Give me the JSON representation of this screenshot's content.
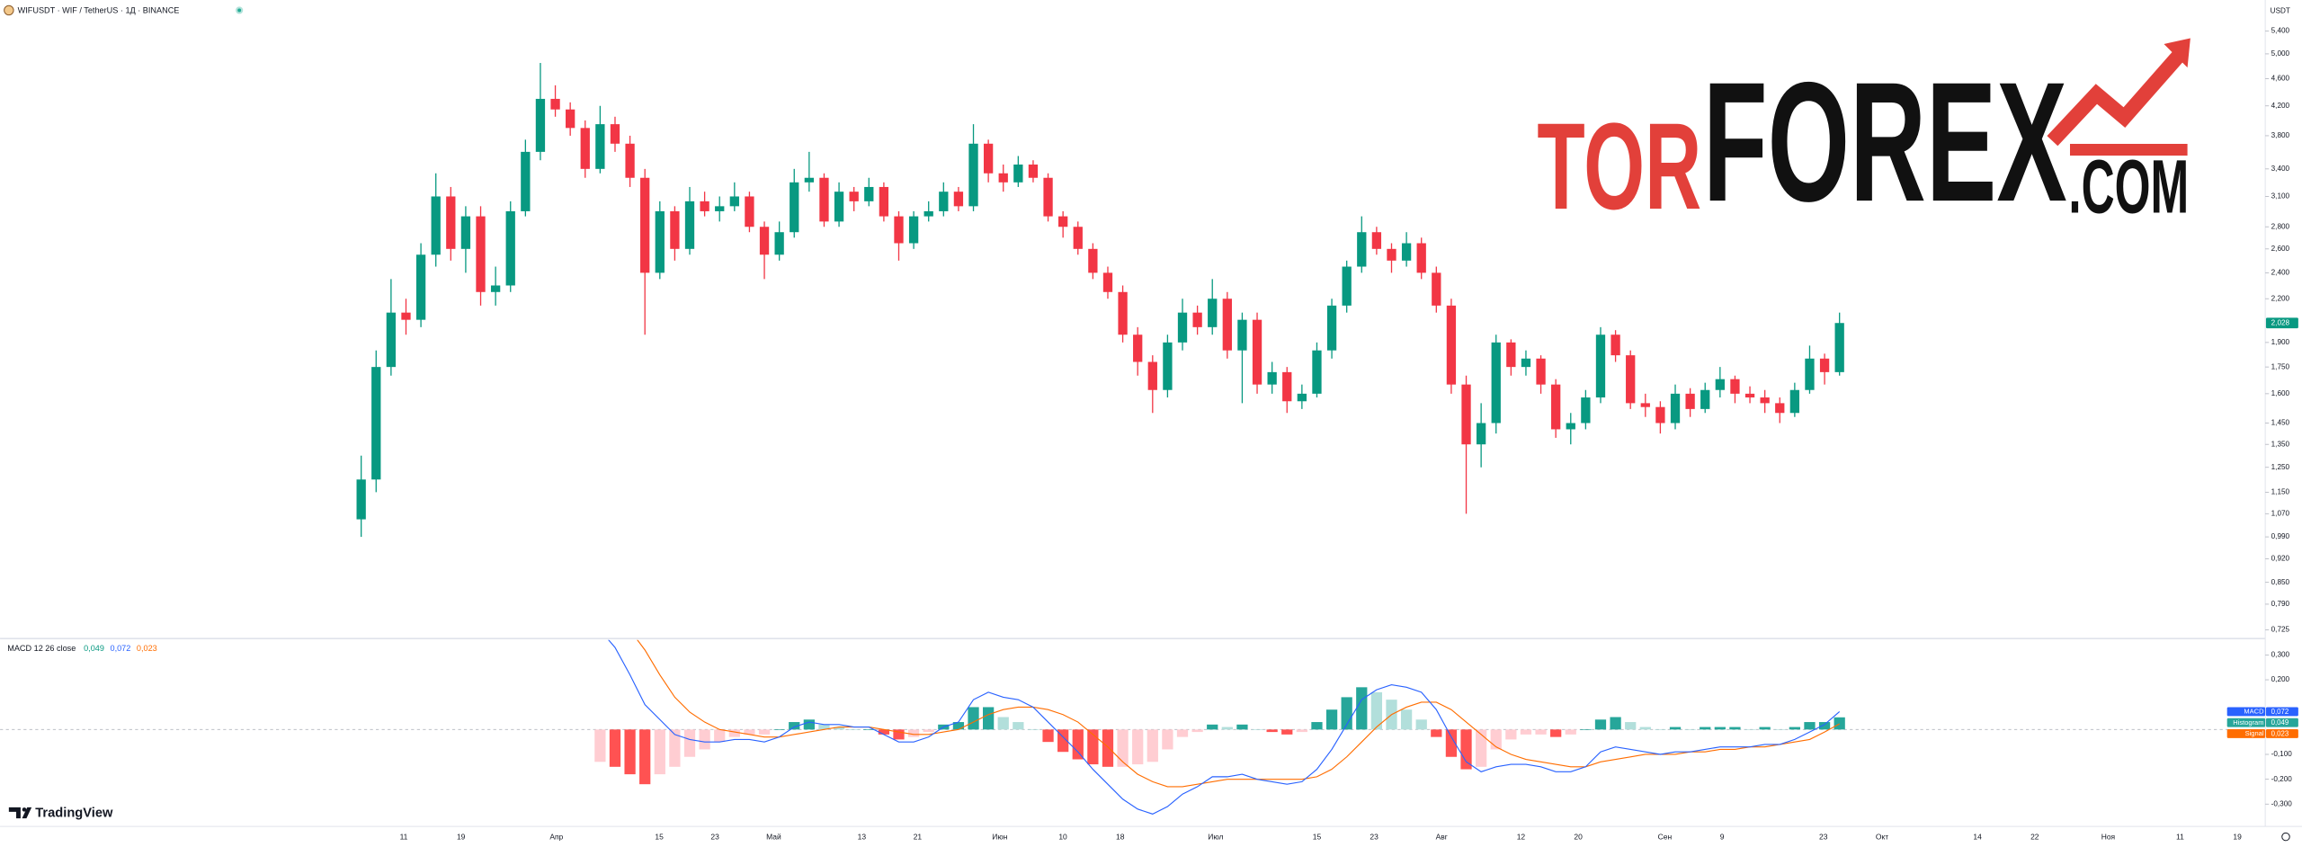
{
  "chart_data": {
    "type": "candlestick",
    "title": "WIFUSDT · WIF / TetherUS · 1Д · BINANCE",
    "currency": "USDT",
    "logo": {
      "part1": "TOR",
      "part2": "FOREX",
      "part3": ".COM"
    },
    "watermark": "TradingView",
    "log_scale": true,
    "up_color": "#089981",
    "down_color": "#f23645",
    "last_price_label": "2,028",
    "ylim": [
      0.704,
      5.99
    ],
    "yticks": [
      {
        "value": 5.4,
        "label": "5,400"
      },
      {
        "value": 5.0,
        "label": "5,000"
      },
      {
        "value": 4.6,
        "label": "4,600"
      },
      {
        "value": 4.2,
        "label": "4,200"
      },
      {
        "value": 3.8,
        "label": "3,800"
      },
      {
        "value": 3.4,
        "label": "3,400"
      },
      {
        "value": 3.1,
        "label": "3,100"
      },
      {
        "value": 2.8,
        "label": "2,800"
      },
      {
        "value": 2.6,
        "label": "2,600"
      },
      {
        "value": 2.4,
        "label": "2,400"
      },
      {
        "value": 2.2,
        "label": "2,200"
      },
      {
        "value": 1.9,
        "label": "1,900"
      },
      {
        "value": 1.75,
        "label": "1,750"
      },
      {
        "value": 1.6,
        "label": "1,600"
      },
      {
        "value": 1.45,
        "label": "1,450"
      },
      {
        "value": 1.35,
        "label": "1,350"
      },
      {
        "value": 1.25,
        "label": "1,250"
      },
      {
        "value": 1.15,
        "label": "1,150"
      },
      {
        "value": 1.07,
        "label": "1,070"
      },
      {
        "value": 0.99,
        "label": "0,990"
      },
      {
        "value": 0.92,
        "label": "0,920"
      },
      {
        "value": 0.85,
        "label": "0,850"
      },
      {
        "value": 0.79,
        "label": "0,790"
      },
      {
        "value": 0.725,
        "label": "0,725"
      }
    ],
    "xticks": [
      "11",
      "19",
      "Апр",
      "15",
      "23",
      "Май",
      "13",
      "21",
      "Июн",
      "10",
      "18",
      "Июл",
      "15",
      "23",
      "Авг",
      "12",
      "20",
      "Сен",
      "9",
      "23",
      "Окт",
      "14",
      "22",
      "Ноя",
      "11",
      "19"
    ],
    "candles": [
      [
        1.05,
        1.3,
        0.99,
        1.2
      ],
      [
        1.2,
        1.85,
        1.15,
        1.75
      ],
      [
        1.75,
        2.35,
        1.7,
        2.1
      ],
      [
        2.1,
        2.2,
        1.95,
        2.05
      ],
      [
        2.05,
        2.65,
        2.0,
        2.55
      ],
      [
        2.55,
        3.35,
        2.45,
        3.1
      ],
      [
        3.1,
        3.2,
        2.5,
        2.6
      ],
      [
        2.6,
        3.0,
        2.4,
        2.9
      ],
      [
        2.9,
        3.0,
        2.15,
        2.25
      ],
      [
        2.25,
        2.45,
        2.15,
        2.3
      ],
      [
        2.3,
        3.05,
        2.25,
        2.95
      ],
      [
        2.95,
        3.75,
        2.9,
        3.6
      ],
      [
        3.6,
        4.85,
        3.5,
        4.3
      ],
      [
        4.3,
        4.5,
        4.05,
        4.15
      ],
      [
        4.15,
        4.25,
        3.8,
        3.9
      ],
      [
        3.9,
        4.0,
        3.3,
        3.4
      ],
      [
        3.4,
        4.2,
        3.35,
        3.95
      ],
      [
        3.95,
        4.05,
        3.6,
        3.7
      ],
      [
        3.7,
        3.8,
        3.2,
        3.3
      ],
      [
        3.3,
        3.4,
        1.95,
        2.4
      ],
      [
        2.4,
        3.05,
        2.35,
        2.95
      ],
      [
        2.95,
        3.0,
        2.5,
        2.6
      ],
      [
        2.6,
        3.2,
        2.55,
        3.05
      ],
      [
        3.05,
        3.15,
        2.9,
        2.95
      ],
      [
        2.95,
        3.1,
        2.85,
        3.0
      ],
      [
        3.0,
        3.25,
        2.95,
        3.1
      ],
      [
        3.1,
        3.15,
        2.75,
        2.8
      ],
      [
        2.8,
        2.85,
        2.35,
        2.55
      ],
      [
        2.55,
        2.85,
        2.5,
        2.75
      ],
      [
        2.75,
        3.4,
        2.7,
        3.25
      ],
      [
        3.25,
        3.6,
        3.15,
        3.3
      ],
      [
        3.3,
        3.35,
        2.8,
        2.85
      ],
      [
        2.85,
        3.25,
        2.8,
        3.15
      ],
      [
        3.15,
        3.2,
        2.95,
        3.05
      ],
      [
        3.05,
        3.3,
        3.0,
        3.2
      ],
      [
        3.2,
        3.25,
        2.85,
        2.9
      ],
      [
        2.9,
        2.95,
        2.5,
        2.65
      ],
      [
        2.65,
        2.95,
        2.6,
        2.9
      ],
      [
        2.9,
        3.05,
        2.85,
        2.95
      ],
      [
        2.95,
        3.25,
        2.9,
        3.15
      ],
      [
        3.15,
        3.2,
        2.95,
        3.0
      ],
      [
        3.0,
        3.95,
        2.95,
        3.7
      ],
      [
        3.7,
        3.75,
        3.25,
        3.35
      ],
      [
        3.35,
        3.45,
        3.15,
        3.25
      ],
      [
        3.25,
        3.55,
        3.2,
        3.45
      ],
      [
        3.45,
        3.5,
        3.25,
        3.3
      ],
      [
        3.3,
        3.35,
        2.85,
        2.9
      ],
      [
        2.9,
        2.95,
        2.7,
        2.8
      ],
      [
        2.8,
        2.85,
        2.55,
        2.6
      ],
      [
        2.6,
        2.65,
        2.35,
        2.4
      ],
      [
        2.4,
        2.45,
        2.2,
        2.25
      ],
      [
        2.25,
        2.3,
        1.9,
        1.95
      ],
      [
        1.95,
        2.0,
        1.7,
        1.78
      ],
      [
        1.78,
        1.82,
        1.5,
        1.62
      ],
      [
        1.62,
        1.95,
        1.58,
        1.9
      ],
      [
        1.9,
        2.2,
        1.85,
        2.1
      ],
      [
        2.1,
        2.15,
        1.95,
        2.0
      ],
      [
        2.0,
        2.35,
        1.95,
        2.2
      ],
      [
        2.2,
        2.25,
        1.8,
        1.85
      ],
      [
        1.85,
        2.1,
        1.55,
        2.05
      ],
      [
        2.05,
        2.1,
        1.6,
        1.65
      ],
      [
        1.65,
        1.78,
        1.6,
        1.72
      ],
      [
        1.72,
        1.75,
        1.5,
        1.56
      ],
      [
        1.56,
        1.65,
        1.52,
        1.6
      ],
      [
        1.6,
        1.9,
        1.58,
        1.85
      ],
      [
        1.85,
        2.2,
        1.8,
        2.15
      ],
      [
        2.15,
        2.5,
        2.1,
        2.45
      ],
      [
        2.45,
        2.9,
        2.4,
        2.75
      ],
      [
        2.75,
        2.8,
        2.55,
        2.6
      ],
      [
        2.6,
        2.65,
        2.4,
        2.5
      ],
      [
        2.5,
        2.75,
        2.45,
        2.65
      ],
      [
        2.65,
        2.7,
        2.35,
        2.4
      ],
      [
        2.4,
        2.45,
        2.1,
        2.15
      ],
      [
        2.15,
        2.2,
        1.6,
        1.65
      ],
      [
        1.65,
        1.7,
        1.07,
        1.35
      ],
      [
        1.35,
        1.55,
        1.25,
        1.45
      ],
      [
        1.45,
        1.95,
        1.4,
        1.9
      ],
      [
        1.9,
        1.92,
        1.7,
        1.75
      ],
      [
        1.75,
        1.85,
        1.7,
        1.8
      ],
      [
        1.8,
        1.82,
        1.6,
        1.65
      ],
      [
        1.65,
        1.68,
        1.38,
        1.42
      ],
      [
        1.42,
        1.5,
        1.35,
        1.45
      ],
      [
        1.45,
        1.62,
        1.42,
        1.58
      ],
      [
        1.58,
        2.0,
        1.55,
        1.95
      ],
      [
        1.95,
        1.98,
        1.78,
        1.82
      ],
      [
        1.82,
        1.85,
        1.52,
        1.55
      ],
      [
        1.55,
        1.6,
        1.48,
        1.53
      ],
      [
        1.53,
        1.56,
        1.4,
        1.45
      ],
      [
        1.45,
        1.65,
        1.42,
        1.6
      ],
      [
        1.6,
        1.63,
        1.48,
        1.52
      ],
      [
        1.52,
        1.66,
        1.5,
        1.62
      ],
      [
        1.62,
        1.75,
        1.58,
        1.68
      ],
      [
        1.68,
        1.7,
        1.55,
        1.6
      ],
      [
        1.6,
        1.64,
        1.55,
        1.58
      ],
      [
        1.58,
        1.62,
        1.5,
        1.55
      ],
      [
        1.55,
        1.58,
        1.45,
        1.5
      ],
      [
        1.5,
        1.66,
        1.48,
        1.62
      ],
      [
        1.62,
        1.88,
        1.6,
        1.8
      ],
      [
        1.8,
        1.83,
        1.65,
        1.72
      ],
      [
        1.72,
        2.1,
        1.7,
        2.028
      ]
    ],
    "macd": {
      "legend": "MACD 12 26 close",
      "legend_values": [
        "0,049",
        "0,072",
        "0,023"
      ],
      "badges": {
        "macd": "MACD",
        "histogram": "Histogram",
        "signal": "Signal"
      },
      "badge_values": {
        "macd": "0,072",
        "histogram": "0,049",
        "signal": "0,023"
      },
      "macd_color": "#2962ff",
      "signal_color": "#ff6d00",
      "ylim": [
        -0.384,
        0.36
      ],
      "yticks": [
        {
          "value": 0.3,
          "label": "0,300"
        },
        {
          "value": 0.2,
          "label": "0,200"
        },
        {
          "value": -0.1,
          "label": "-0,100"
        },
        {
          "value": -0.2,
          "label": "-0,200"
        },
        {
          "value": -0.3,
          "label": "-0,300"
        }
      ],
      "macd_values": [
        null,
        null,
        null,
        null,
        null,
        null,
        null,
        null,
        null,
        null,
        null,
        null,
        null,
        null,
        null,
        null,
        0.4,
        0.33,
        0.22,
        0.1,
        0.04,
        -0.02,
        -0.04,
        -0.05,
        -0.05,
        -0.04,
        -0.04,
        -0.05,
        -0.03,
        0.01,
        0.03,
        0.02,
        0.02,
        0.01,
        0.01,
        -0.02,
        -0.05,
        -0.05,
        -0.03,
        0.01,
        0.03,
        0.12,
        0.15,
        0.13,
        0.12,
        0.09,
        0.03,
        -0.03,
        -0.09,
        -0.16,
        -0.22,
        -0.28,
        -0.32,
        -0.34,
        -0.31,
        -0.26,
        -0.23,
        -0.19,
        -0.19,
        -0.18,
        -0.2,
        -0.21,
        -0.22,
        -0.21,
        -0.16,
        -0.08,
        0.02,
        0.12,
        0.16,
        0.18,
        0.17,
        0.15,
        0.08,
        -0.03,
        -0.13,
        -0.17,
        -0.15,
        -0.14,
        -0.14,
        -0.15,
        -0.17,
        -0.17,
        -0.15,
        -0.09,
        -0.07,
        -0.08,
        -0.09,
        -0.1,
        -0.09,
        -0.09,
        -0.08,
        -0.07,
        -0.07,
        -0.07,
        -0.06,
        -0.06,
        -0.04,
        -0.01,
        0.02,
        0.072
      ],
      "signal_values": [
        null,
        null,
        null,
        null,
        null,
        null,
        null,
        null,
        null,
        null,
        null,
        null,
        null,
        null,
        null,
        null,
        0.53,
        0.48,
        0.4,
        0.32,
        0.22,
        0.13,
        0.07,
        0.03,
        0.0,
        -0.01,
        -0.02,
        -0.03,
        -0.03,
        -0.02,
        -0.01,
        0.0,
        0.01,
        0.01,
        0.01,
        0.0,
        -0.01,
        -0.02,
        -0.02,
        -0.01,
        0.0,
        0.03,
        0.06,
        0.08,
        0.09,
        0.09,
        0.08,
        0.06,
        0.03,
        -0.02,
        -0.07,
        -0.13,
        -0.18,
        -0.21,
        -0.23,
        -0.23,
        -0.22,
        -0.21,
        -0.2,
        -0.2,
        -0.2,
        -0.2,
        -0.2,
        -0.2,
        -0.19,
        -0.16,
        -0.11,
        -0.05,
        0.01,
        0.06,
        0.09,
        0.11,
        0.11,
        0.08,
        0.03,
        -0.02,
        -0.07,
        -0.1,
        -0.12,
        -0.13,
        -0.14,
        -0.15,
        -0.15,
        -0.13,
        -0.12,
        -0.11,
        -0.1,
        -0.1,
        -0.1,
        -0.09,
        -0.09,
        -0.08,
        -0.08,
        -0.07,
        -0.07,
        -0.06,
        -0.05,
        -0.04,
        -0.01,
        0.023
      ],
      "histogram": [
        null,
        null,
        null,
        null,
        null,
        null,
        null,
        null,
        null,
        null,
        null,
        null,
        null,
        null,
        null,
        null,
        -0.13,
        -0.15,
        -0.18,
        -0.22,
        -0.18,
        -0.15,
        -0.11,
        -0.08,
        -0.05,
        -0.03,
        -0.02,
        -0.02,
        0.0,
        0.03,
        0.04,
        0.02,
        0.01,
        0.0,
        0.0,
        -0.02,
        -0.04,
        -0.03,
        -0.01,
        0.02,
        0.03,
        0.09,
        0.09,
        0.05,
        0.03,
        0.0,
        -0.05,
        -0.09,
        -0.12,
        -0.14,
        -0.15,
        -0.15,
        -0.14,
        -0.13,
        -0.08,
        -0.03,
        -0.01,
        0.02,
        0.01,
        0.02,
        0.0,
        -0.01,
        -0.02,
        -0.01,
        0.03,
        0.08,
        0.13,
        0.17,
        0.15,
        0.12,
        0.08,
        0.04,
        -0.03,
        -0.11,
        -0.16,
        -0.15,
        -0.08,
        -0.04,
        -0.02,
        -0.02,
        -0.03,
        -0.02,
        0.0,
        0.04,
        0.05,
        0.03,
        0.01,
        0.0,
        0.01,
        0.0,
        0.01,
        0.01,
        0.01,
        0.0,
        0.01,
        0.0,
        0.01,
        0.03,
        0.03,
        0.049
      ]
    }
  }
}
